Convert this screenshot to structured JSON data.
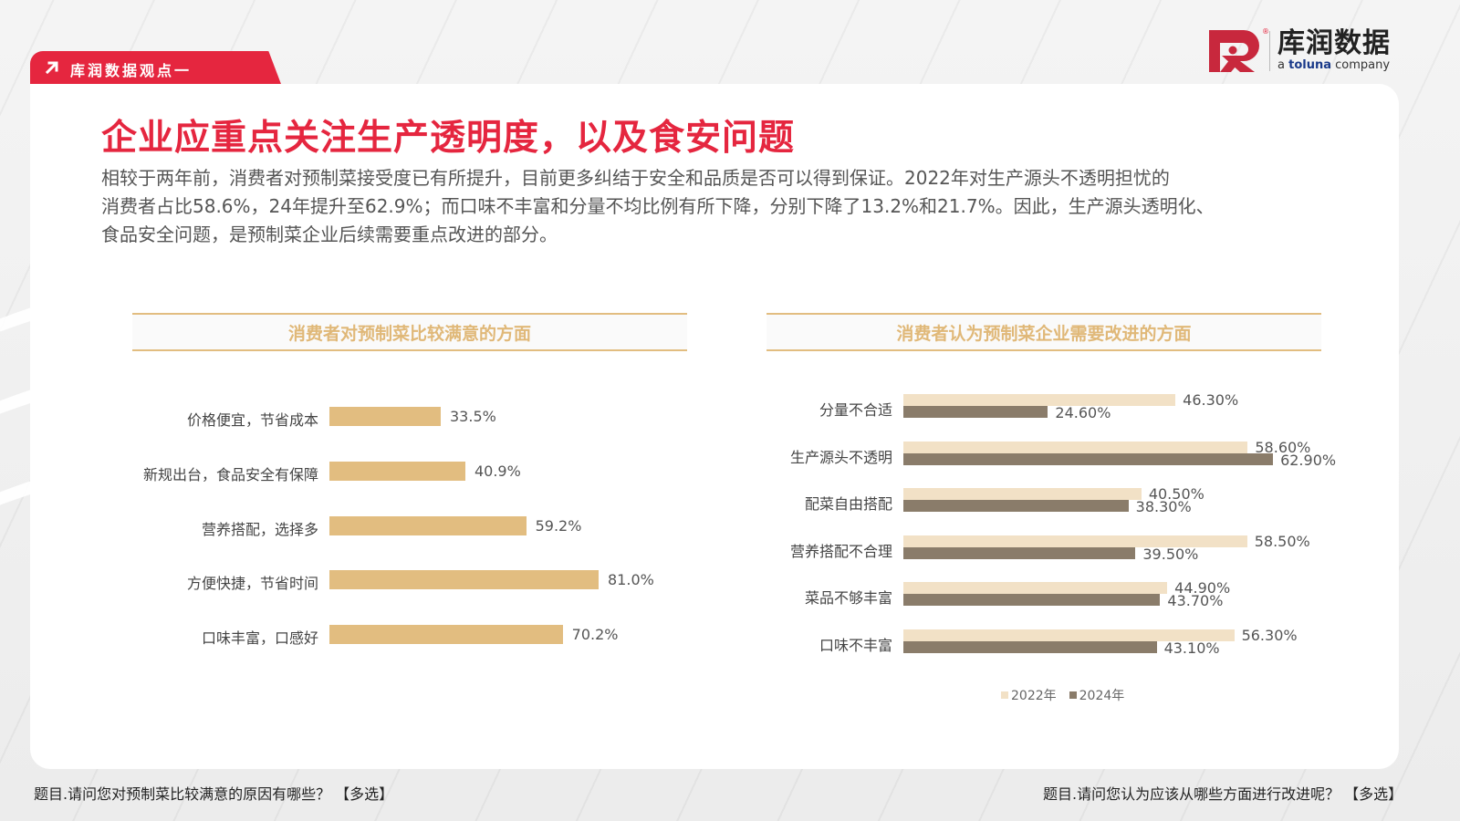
{
  "section_tab": {
    "label": "库润数据观点一",
    "icon": "arrow-up-right-icon"
  },
  "logo": {
    "brand_cn": "库润数据",
    "brand_en_prefix": "a ",
    "brand_en_name": "toluna",
    "brand_en_suffix": " company",
    "registered": "®"
  },
  "title": "企业应重点关注生产透明度，以及食安问题",
  "body_lines": [
    "相较于两年前，消费者对预制菜接受度已有所提升，目前更多纠结于安全和品质是否可以得到保证。2022年对生产源头不透明担忧的",
    "消费者占比58.6%，24年提升至62.9%；而口味不丰富和分量不均比例有所下降，分别下降了13.2%和21.7%。因此，生产源头透明化、",
    "食品安全问题，是预制菜企业后续需要重点改进的部分。"
  ],
  "colors": {
    "accent": "#e5263f",
    "bar_gold": "#e2bd80",
    "header_gold": "#e0b878",
    "bar_2022": "#f2e1c6",
    "bar_2024": "#8a7c6a"
  },
  "footnotes": {
    "left": "题目.请问您对预制菜比较满意的原因有哪些？ 【多选】",
    "right": "题目.请问您认为应该从哪些方面进行改进呢？ 【多选】"
  },
  "chart_data": [
    {
      "type": "bar",
      "orientation": "horizontal",
      "title": "消费者对预制菜比较满意的方面",
      "categories": [
        "价格便宜，节省成本",
        "新规出台，食品安全有保障",
        "营养搭配，选择多",
        "方便快捷，节省时间",
        "口味丰富，口感好"
      ],
      "values": [
        33.5,
        40.9,
        59.2,
        81.0,
        70.2
      ],
      "labels": [
        "33.5%",
        "40.9%",
        "59.2%",
        "81.0%",
        "70.2%"
      ],
      "xlabel": "",
      "ylabel": "",
      "grid": false,
      "unit": "%"
    },
    {
      "type": "bar",
      "orientation": "horizontal",
      "title": "消费者认为预制菜企业需要改进的方面",
      "categories": [
        "分量不合适",
        "生产源头不透明",
        "配菜自由搭配",
        "营养搭配不合理",
        "菜品不够丰富",
        "口味不丰富"
      ],
      "series": [
        {
          "name": "2022年",
          "values": [
            46.3,
            58.6,
            40.5,
            58.5,
            44.9,
            56.3
          ],
          "labels": [
            "46.30%",
            "58.60%",
            "40.50%",
            "58.50%",
            "44.90%",
            "56.30%"
          ]
        },
        {
          "name": "2024年",
          "values": [
            24.6,
            62.9,
            38.3,
            39.5,
            43.7,
            43.1
          ],
          "labels": [
            "24.60%",
            "62.90%",
            "38.30%",
            "39.50%",
            "43.70%",
            "43.10%"
          ]
        }
      ],
      "legend_position": "bottom",
      "xlabel": "",
      "ylabel": "",
      "grid": false,
      "unit": "%"
    }
  ]
}
